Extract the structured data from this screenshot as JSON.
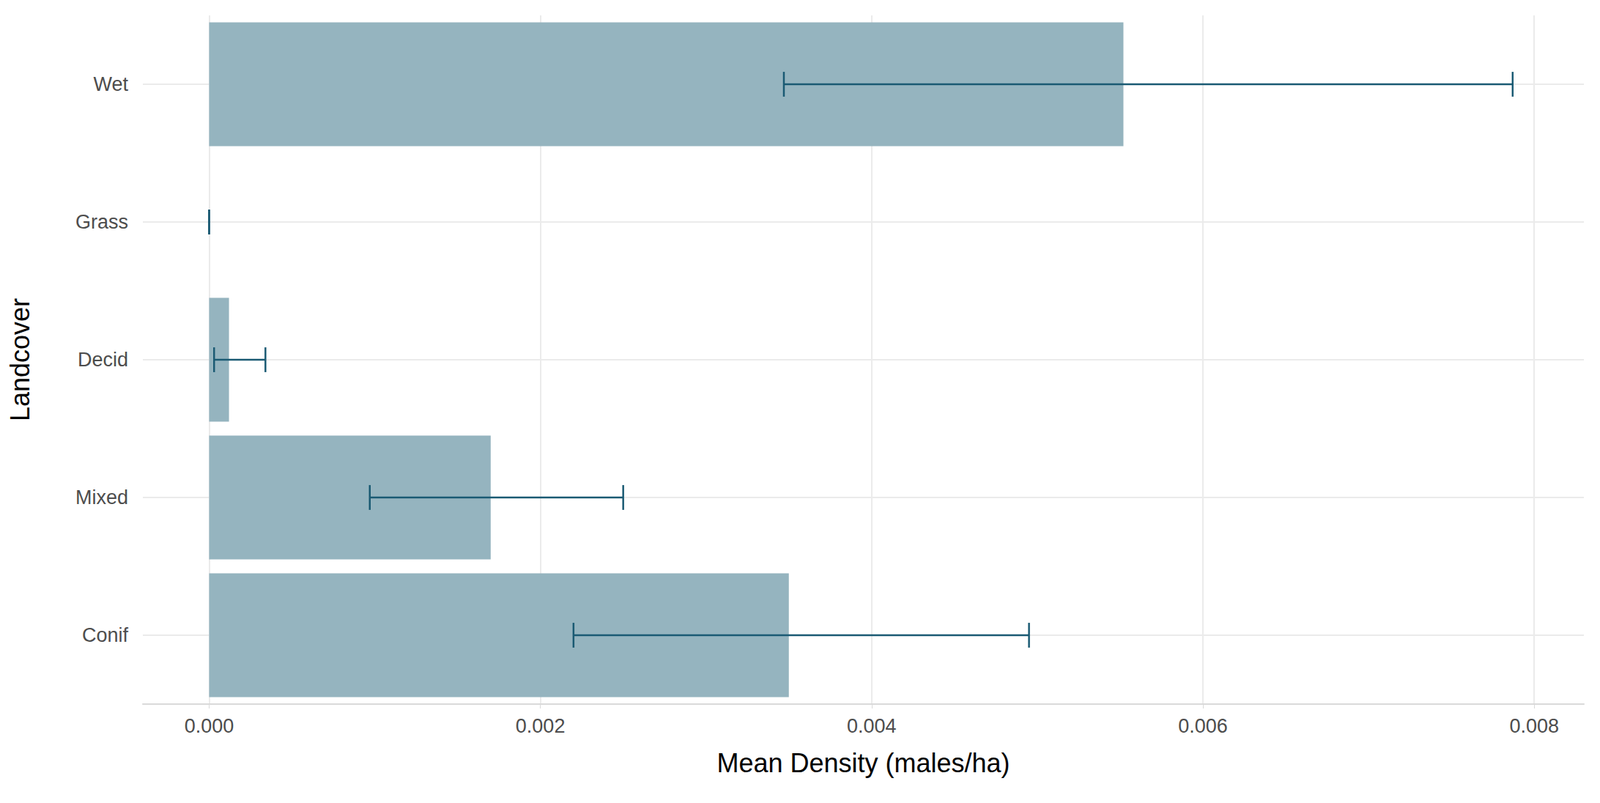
{
  "chart_data": {
    "type": "bar",
    "orientation": "horizontal",
    "xlabel": "Mean Density (males/ha)",
    "ylabel": "Landcover",
    "categories": [
      "Conif",
      "Mixed",
      "Decid",
      "Grass",
      "Wet"
    ],
    "values": [
      0.0035,
      0.0017,
      0.00012,
      0.0,
      0.00552
    ],
    "error_low": [
      0.0022,
      0.00097,
      3e-05,
      0.0,
      0.00347
    ],
    "error_high": [
      0.00495,
      0.0025,
      0.00034,
      0.0,
      0.00787
    ],
    "color": "#95b4bf",
    "xlim": [
      -0.0004,
      0.0083
    ],
    "xticks": [
      {
        "value": 0,
        "label": "0.000"
      },
      {
        "value": 0.002,
        "label": "0.002"
      },
      {
        "value": 0.004,
        "label": "0.004"
      },
      {
        "value": 0.006,
        "label": "0.006"
      },
      {
        "value": 0.008,
        "label": "0.008"
      }
    ],
    "grid": true
  }
}
